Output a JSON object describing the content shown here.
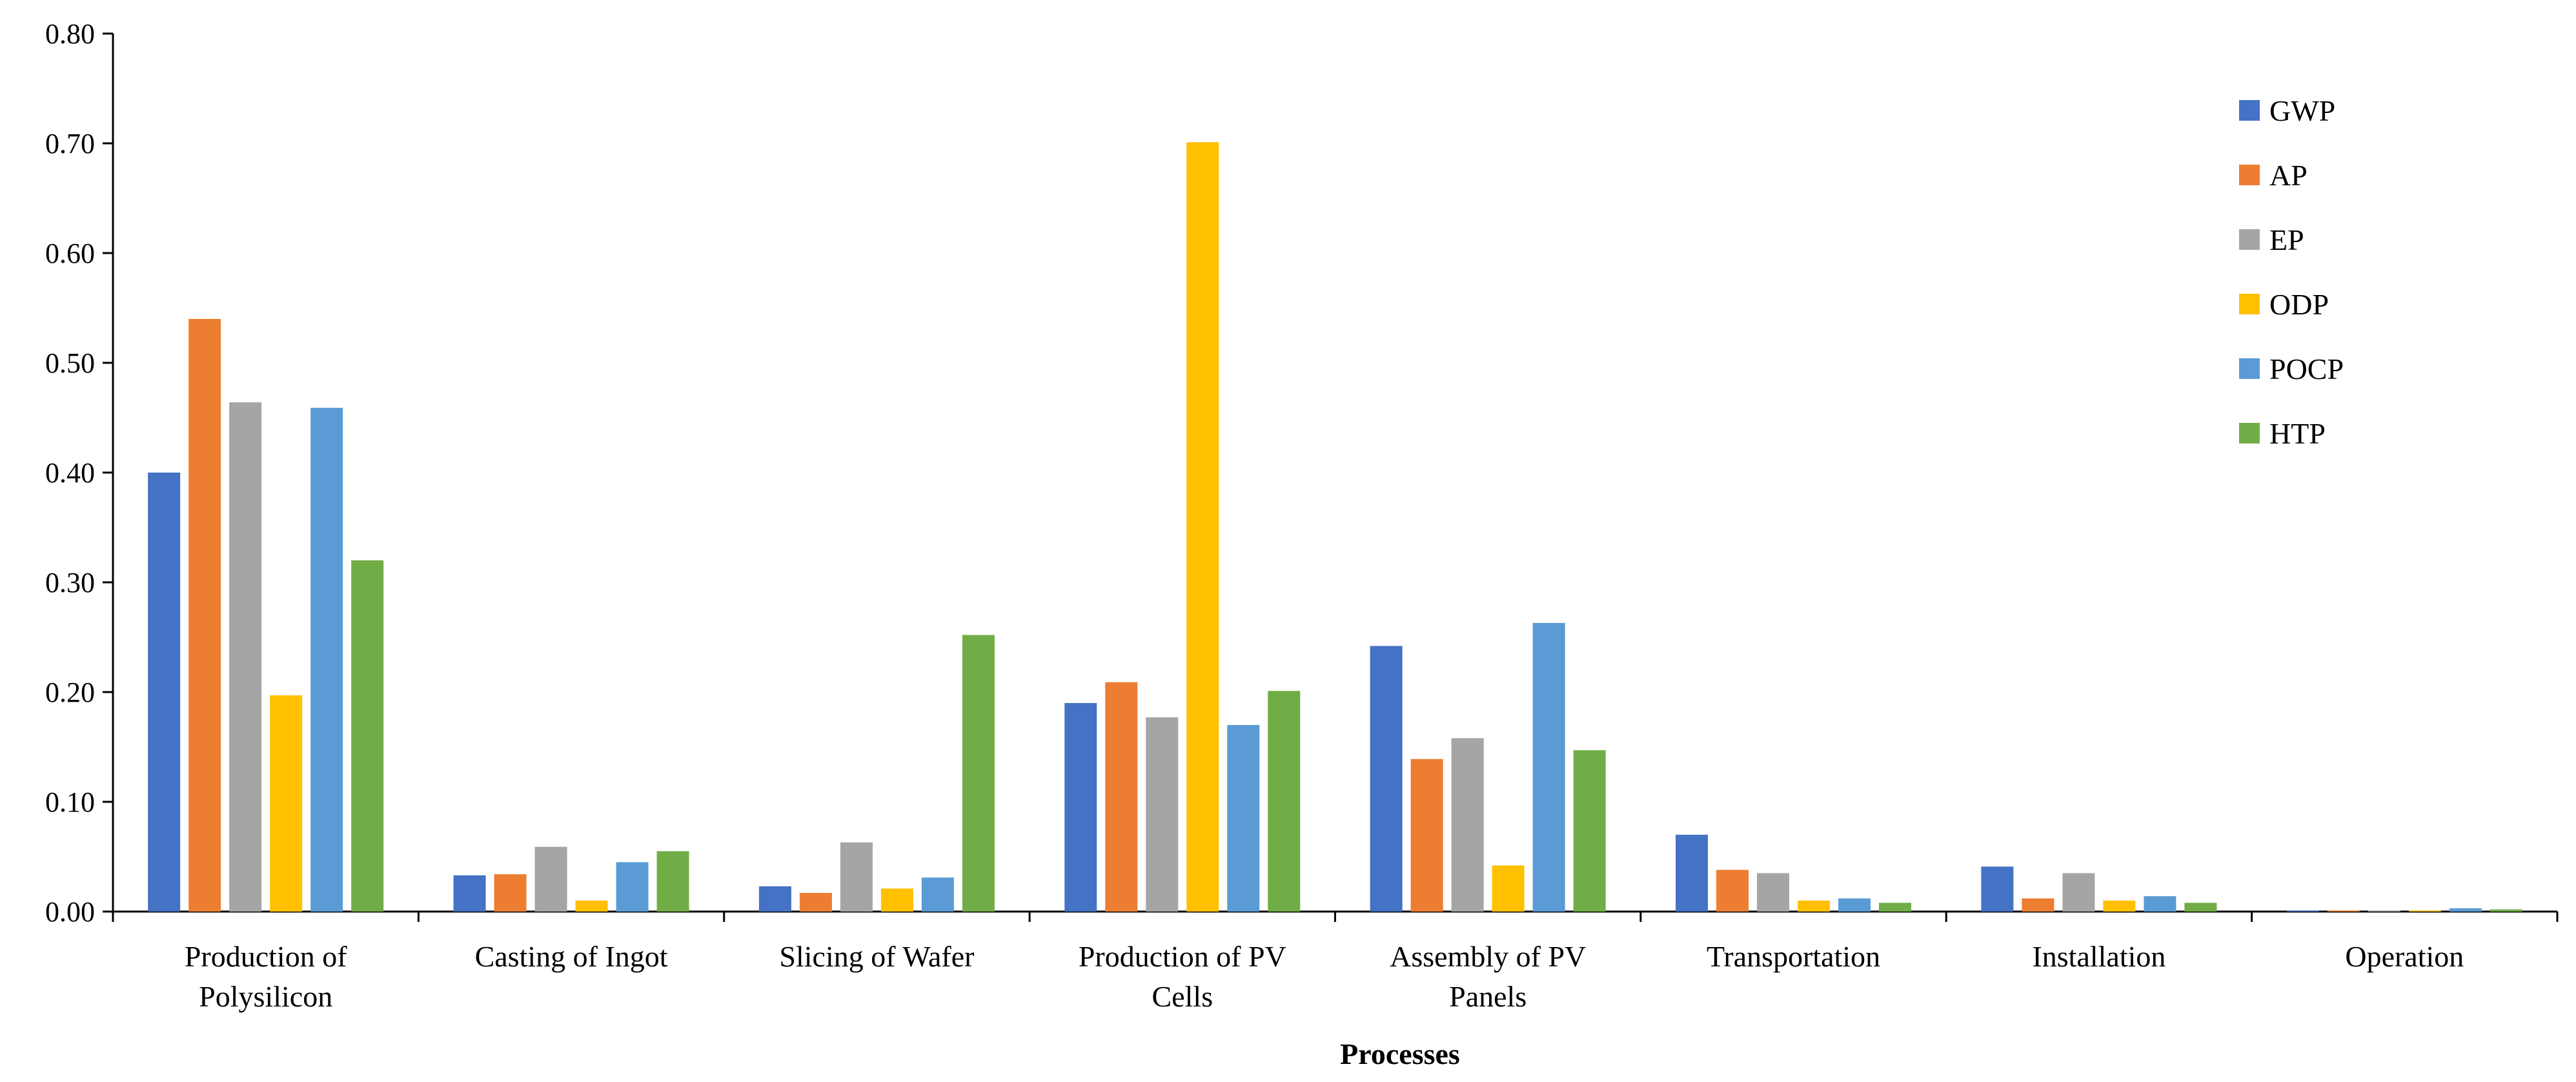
{
  "chart_data": {
    "type": "bar",
    "title": "",
    "xlabel": "Processes",
    "ylabel": "",
    "ylim": [
      0,
      0.8
    ],
    "yticks": [
      "0.00",
      "0.10",
      "0.20",
      "0.30",
      "0.40",
      "0.50",
      "0.60",
      "0.70",
      "0.80"
    ],
    "ytick_values": [
      0,
      0.1,
      0.2,
      0.3,
      0.4,
      0.5,
      0.6,
      0.7,
      0.8
    ],
    "grid": false,
    "legend_position": "top-right",
    "categories": [
      [
        "Production of",
        "Polysilicon"
      ],
      [
        "Casting of Ingot"
      ],
      [
        "Slicing of Wafer"
      ],
      [
        "Production of PV",
        "Cells"
      ],
      [
        "Assembly of PV",
        "Panels"
      ],
      [
        "Transportation"
      ],
      [
        "Installation"
      ],
      [
        "Operation"
      ]
    ],
    "series": [
      {
        "name": "GWP",
        "color": "#4472C4",
        "values": [
          0.4,
          0.033,
          0.023,
          0.19,
          0.242,
          0.07,
          0.041,
          0.001
        ]
      },
      {
        "name": "AP",
        "color": "#ED7D31",
        "values": [
          0.54,
          0.034,
          0.017,
          0.209,
          0.139,
          0.038,
          0.012,
          0.001
        ]
      },
      {
        "name": "EP",
        "color": "#A5A5A5",
        "values": [
          0.464,
          0.059,
          0.063,
          0.177,
          0.158,
          0.035,
          0.035,
          0.001
        ]
      },
      {
        "name": "ODP",
        "color": "#FFC000",
        "values": [
          0.197,
          0.01,
          0.021,
          0.701,
          0.042,
          0.01,
          0.01,
          0.001
        ]
      },
      {
        "name": "POCP",
        "color": "#5B9BD5",
        "values": [
          0.459,
          0.045,
          0.031,
          0.17,
          0.263,
          0.012,
          0.014,
          0.003
        ]
      },
      {
        "name": "HTP",
        "color": "#70AD47",
        "values": [
          0.32,
          0.055,
          0.252,
          0.201,
          0.147,
          0.008,
          0.008,
          0.002
        ]
      }
    ]
  }
}
